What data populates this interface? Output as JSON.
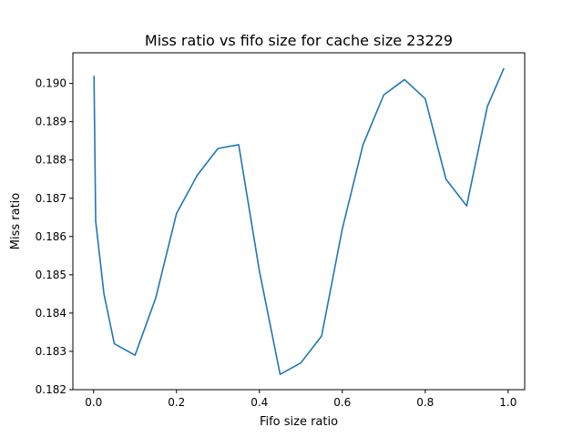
{
  "chart_data": {
    "type": "line",
    "title": "Miss ratio vs fifo size for cache size 23229",
    "xlabel": "Fifo size ratio",
    "ylabel": "Miss ratio",
    "xlim": [
      -0.05,
      1.04
    ],
    "ylim": [
      0.182,
      0.1908
    ],
    "xticks": [
      0.0,
      0.2,
      0.4,
      0.6,
      0.8,
      1.0
    ],
    "xtick_labels": [
      "0.0",
      "0.2",
      "0.4",
      "0.6",
      "0.8",
      "1.0"
    ],
    "yticks": [
      0.182,
      0.183,
      0.184,
      0.185,
      0.186,
      0.187,
      0.188,
      0.189,
      0.19
    ],
    "ytick_labels": [
      "0.182",
      "0.183",
      "0.184",
      "0.185",
      "0.186",
      "0.187",
      "0.188",
      "0.189",
      "0.190"
    ],
    "grid": false,
    "series": [
      {
        "color": "#1f77b4",
        "x": [
          0.001,
          0.005,
          0.025,
          0.05,
          0.1,
          0.15,
          0.2,
          0.25,
          0.3,
          0.35,
          0.4,
          0.45,
          0.5,
          0.55,
          0.6,
          0.65,
          0.7,
          0.75,
          0.8,
          0.85,
          0.9,
          0.95,
          0.99
        ],
        "y": [
          0.1902,
          0.1864,
          0.1845,
          0.1832,
          0.1829,
          0.1844,
          0.1866,
          0.1876,
          0.1883,
          0.1884,
          0.1851,
          0.1824,
          0.1827,
          0.1834,
          0.1862,
          0.1884,
          0.1897,
          0.1901,
          0.1896,
          0.1875,
          0.1868,
          0.1894,
          0.1904
        ]
      }
    ]
  }
}
